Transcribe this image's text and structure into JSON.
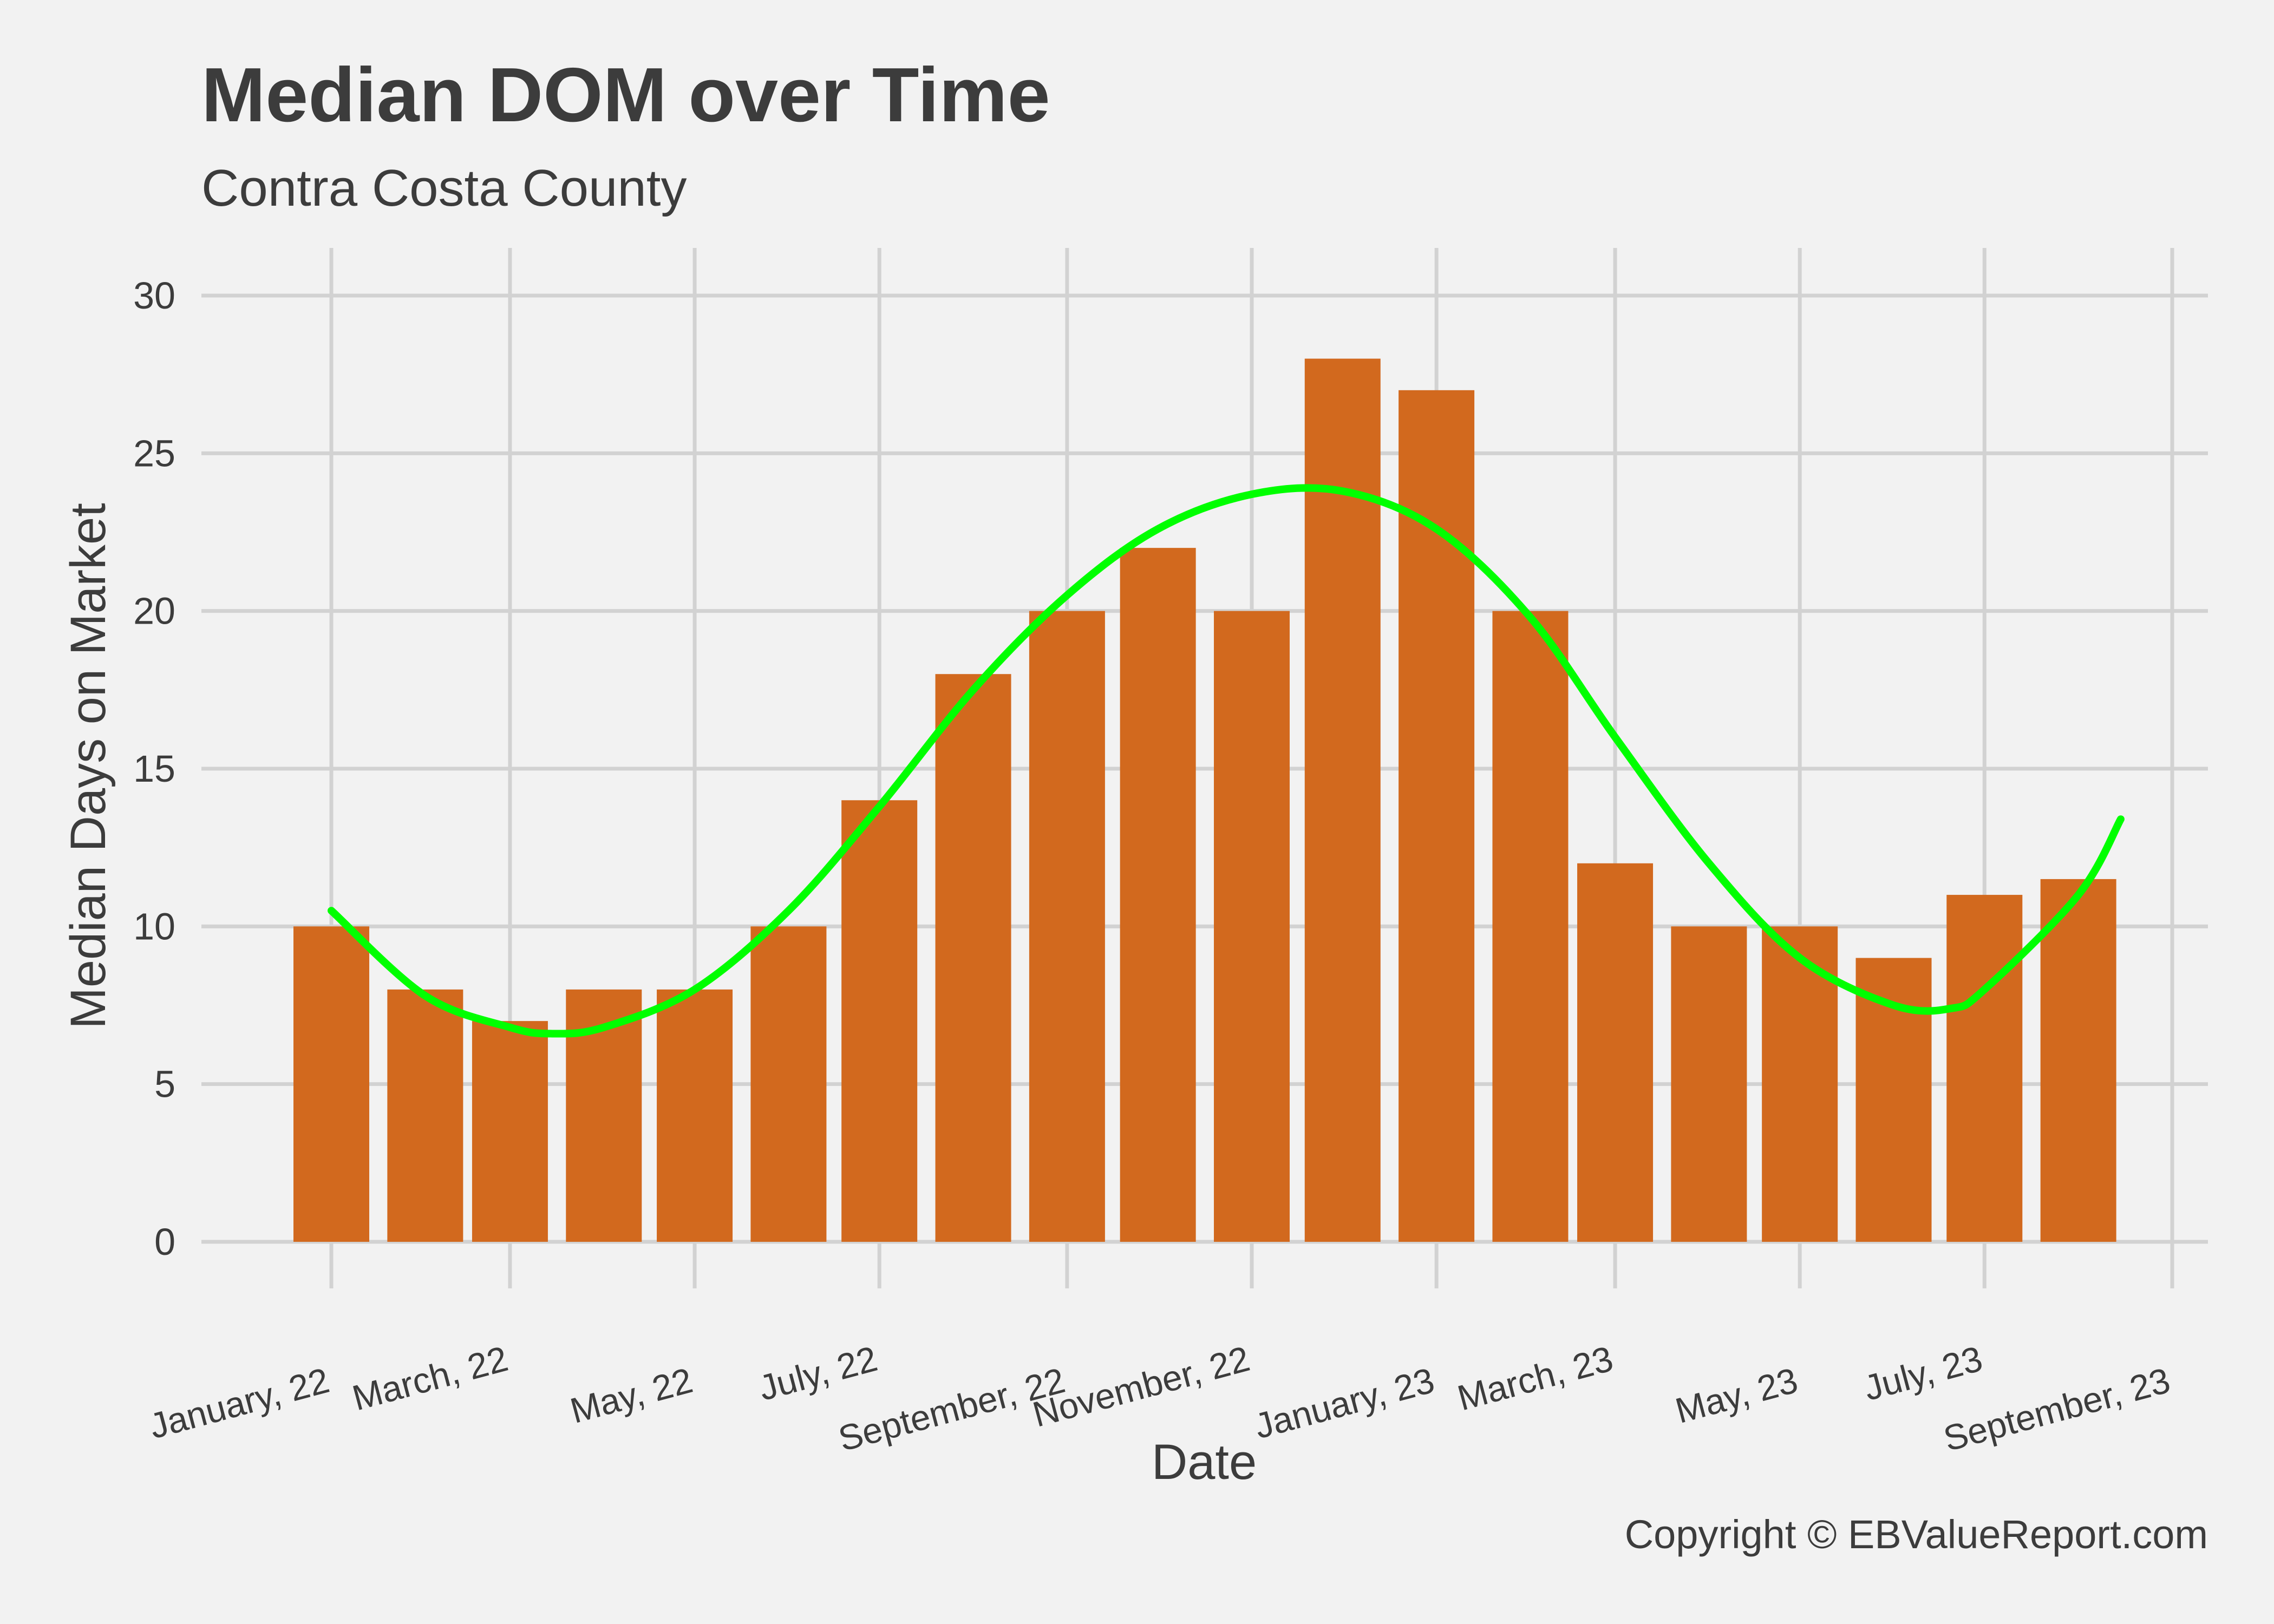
{
  "chart_data": {
    "type": "bar",
    "title": "Median DOM over Time",
    "subtitle": "Contra Costa County",
    "xlabel": "Date",
    "ylabel": "Median Days on Market",
    "caption": "Copyright  © EBValueReport.com",
    "ylim": [
      0,
      30
    ],
    "yticks": [
      0,
      5,
      10,
      15,
      20,
      25,
      30
    ],
    "grid": true,
    "xticks": [
      {
        "label": "January, 22",
        "date": "2022-01-01"
      },
      {
        "label": "March, 22",
        "date": "2022-03-01"
      },
      {
        "label": "May, 22",
        "date": "2022-05-01"
      },
      {
        "label": "July, 22",
        "date": "2022-07-01"
      },
      {
        "label": "September, 22",
        "date": "2022-09-01"
      },
      {
        "label": "November, 22",
        "date": "2022-11-01"
      },
      {
        "label": "January, 23",
        "date": "2023-01-01"
      },
      {
        "label": "March, 23",
        "date": "2023-03-01"
      },
      {
        "label": "May, 23",
        "date": "2023-05-01"
      },
      {
        "label": "July, 23",
        "date": "2023-07-01"
      },
      {
        "label": "September, 23",
        "date": "2023-09-01"
      }
    ],
    "bars": [
      {
        "date": "2022-01-01",
        "value": 10
      },
      {
        "date": "2022-02-01",
        "value": 8
      },
      {
        "date": "2022-03-01",
        "value": 7
      },
      {
        "date": "2022-04-01",
        "value": 8
      },
      {
        "date": "2022-05-01",
        "value": 8
      },
      {
        "date": "2022-06-01",
        "value": 10
      },
      {
        "date": "2022-07-01",
        "value": 14
      },
      {
        "date": "2022-08-01",
        "value": 18
      },
      {
        "date": "2022-09-01",
        "value": 20
      },
      {
        "date": "2022-10-01",
        "value": 22
      },
      {
        "date": "2022-11-01",
        "value": 20
      },
      {
        "date": "2022-12-01",
        "value": 28
      },
      {
        "date": "2023-01-01",
        "value": 27
      },
      {
        "date": "2023-02-01",
        "value": 20
      },
      {
        "date": "2023-03-01",
        "value": 12
      },
      {
        "date": "2023-04-01",
        "value": 10
      },
      {
        "date": "2023-05-01",
        "value": 10
      },
      {
        "date": "2023-06-01",
        "value": 9
      },
      {
        "date": "2023-07-01",
        "value": 11
      },
      {
        "date": "2023-08-01",
        "value": 11.5
      }
    ],
    "trend": [
      {
        "date": "2022-01-01",
        "value": 10.5
      },
      {
        "date": "2022-02-01",
        "value": 7.8
      },
      {
        "date": "2022-03-01",
        "value": 6.8
      },
      {
        "date": "2022-03-15",
        "value": 6.6
      },
      {
        "date": "2022-04-01",
        "value": 6.8
      },
      {
        "date": "2022-05-01",
        "value": 8.0
      },
      {
        "date": "2022-06-01",
        "value": 10.5
      },
      {
        "date": "2022-07-01",
        "value": 13.8
      },
      {
        "date": "2022-08-01",
        "value": 17.5
      },
      {
        "date": "2022-09-01",
        "value": 20.5
      },
      {
        "date": "2022-10-01",
        "value": 22.6
      },
      {
        "date": "2022-11-01",
        "value": 23.7
      },
      {
        "date": "2022-12-01",
        "value": 23.8
      },
      {
        "date": "2023-01-01",
        "value": 22.6
      },
      {
        "date": "2023-02-01",
        "value": 19.8
      },
      {
        "date": "2023-03-01",
        "value": 16.0
      },
      {
        "date": "2023-04-01",
        "value": 12.0
      },
      {
        "date": "2023-05-01",
        "value": 9.0
      },
      {
        "date": "2023-06-01",
        "value": 7.5
      },
      {
        "date": "2023-06-20",
        "value": 7.4
      },
      {
        "date": "2023-07-01",
        "value": 8.0
      },
      {
        "date": "2023-08-01",
        "value": 11.0
      },
      {
        "date": "2023-08-15",
        "value": 13.4
      }
    ],
    "colors": {
      "bar": "#d2691e",
      "trend": "#00ff00",
      "background": "#f2f2f2"
    }
  }
}
